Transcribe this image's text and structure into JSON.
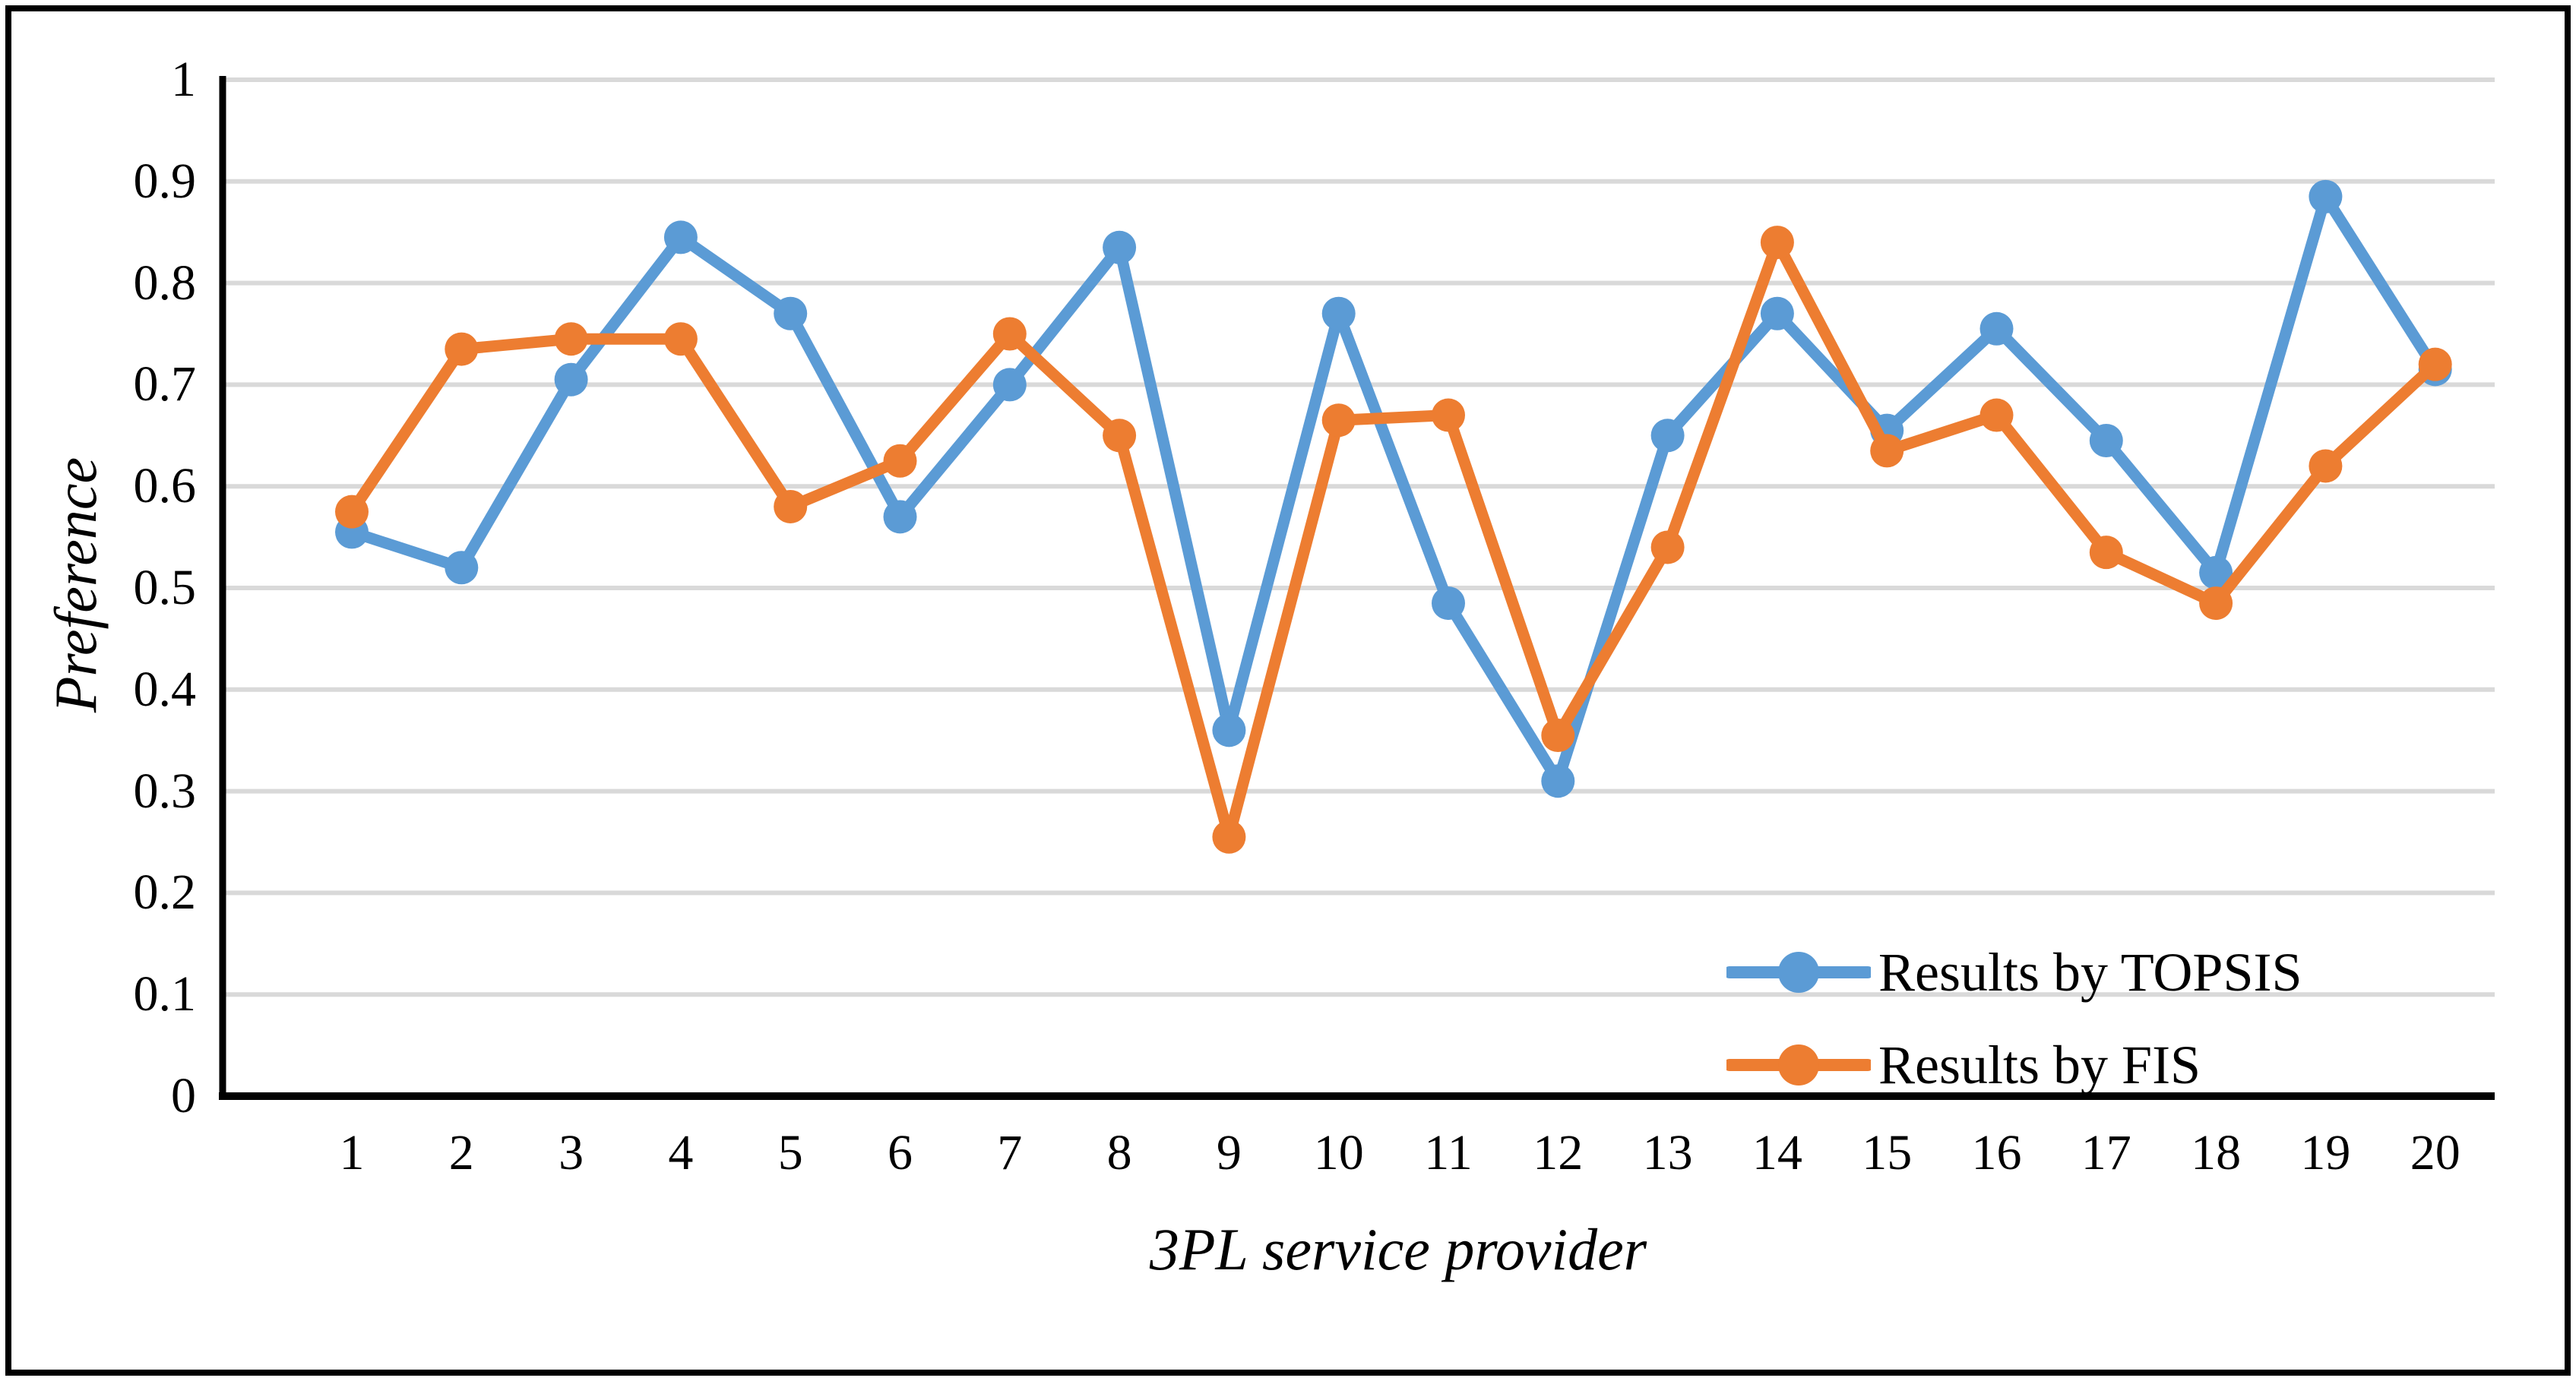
{
  "chart_data": {
    "type": "line",
    "title": "",
    "xlabel": "3PL service provider",
    "ylabel": "Preference",
    "categories": [
      "1",
      "2",
      "3",
      "4",
      "5",
      "6",
      "7",
      "8",
      "9",
      "10",
      "11",
      "12",
      "13",
      "14",
      "15",
      "16",
      "17",
      "18",
      "19",
      "20"
    ],
    "y_ticks": [
      "0",
      "0.1",
      "0.2",
      "0.3",
      "0.4",
      "0.5",
      "0.6",
      "0.7",
      "0.8",
      "0.9",
      "1"
    ],
    "ylim": [
      0,
      1
    ],
    "grid": "horizontal",
    "legend_position": "inside-bottom-right",
    "series": [
      {
        "name": "Results by TOPSIS",
        "color": "#5B9BD5",
        "marker": "circle",
        "values": [
          0.555,
          0.52,
          0.705,
          0.845,
          0.77,
          0.57,
          0.7,
          0.835,
          0.36,
          0.77,
          0.485,
          0.31,
          0.65,
          0.77,
          0.655,
          0.755,
          0.645,
          0.515,
          0.885,
          0.715
        ]
      },
      {
        "name": "Results by FIS",
        "color": "#ED7D31",
        "marker": "circle",
        "values": [
          0.575,
          0.735,
          0.745,
          0.745,
          0.58,
          0.625,
          0.75,
          0.65,
          0.255,
          0.665,
          0.67,
          0.355,
          0.54,
          0.84,
          0.635,
          0.67,
          0.535,
          0.485,
          0.62,
          0.72
        ]
      }
    ],
    "colors": {
      "gridline": "#D9D9D9",
      "axis": "#000000",
      "background": "#FFFFFF",
      "frame_border": "#000000"
    }
  }
}
